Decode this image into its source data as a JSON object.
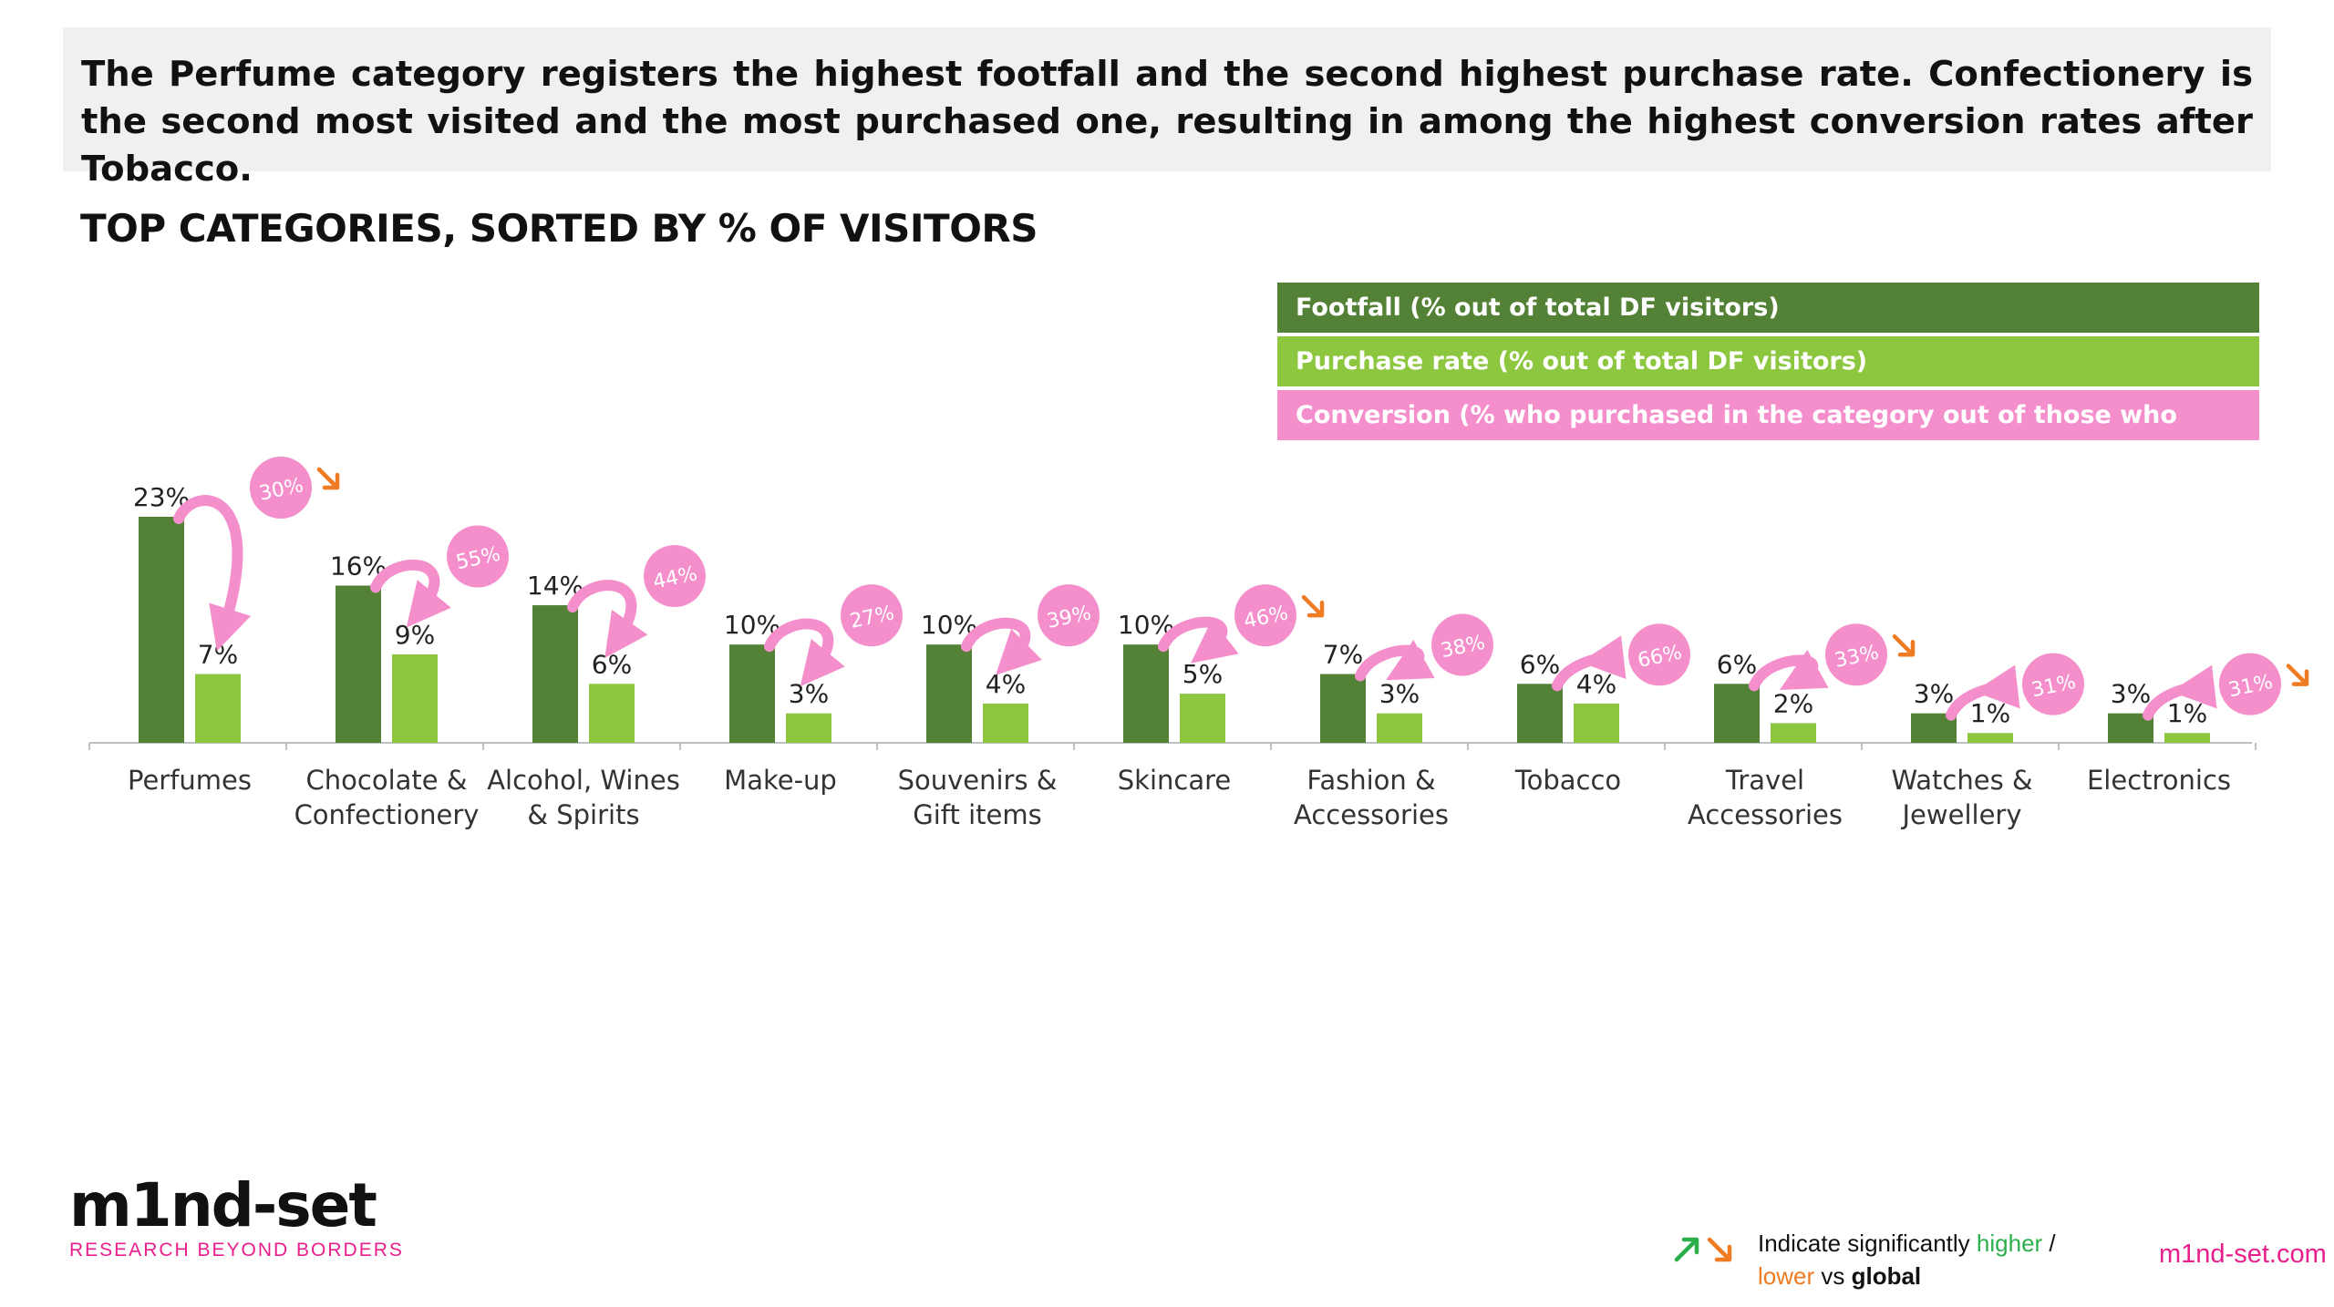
{
  "headline": "The Perfume category registers the highest footfall and the second highest purchase rate. Confectionery is the second most visited and the most purchased one, resulting in among the highest conversion rates after Tobacco.",
  "colors": {
    "footfall": "#538135",
    "purchase": "#8dc63f",
    "conversion": "#f48fcc",
    "lower_arrow": "#f07b22",
    "higher_arrow": "#2db04b",
    "brand": "#e91e8c"
  },
  "legend": {
    "footfall": "Footfall (% out of total DF visitors)",
    "purchase": "Purchase rate (% out of total DF visitors)",
    "conversion": "Conversion (% who purchased in the category out of those who visited it)"
  },
  "chart_data": {
    "type": "bar",
    "title": "TOP CATEGORIES, SORTED BY % OF VISITORS",
    "categories": [
      [
        "Perfumes"
      ],
      [
        "Chocolate &",
        "Confectionery"
      ],
      [
        "Alcohol, Wines",
        "& Spirits"
      ],
      [
        "Make-up"
      ],
      [
        "Souvenirs &",
        "Gift items"
      ],
      [
        "Skincare"
      ],
      [
        "Fashion &",
        "Accessories"
      ],
      [
        "Tobacco"
      ],
      [
        "Travel",
        "Accessories"
      ],
      [
        "Watches &",
        "Jewellery"
      ],
      [
        "Electronics"
      ]
    ],
    "series": [
      {
        "name": "Footfall (% out of total DF visitors)",
        "values": [
          23,
          16,
          14,
          10,
          10,
          10,
          7,
          6,
          6,
          3,
          3
        ]
      },
      {
        "name": "Purchase rate (% out of total DF visitors)",
        "values": [
          7,
          9,
          6,
          3,
          4,
          5,
          3,
          4,
          2,
          1,
          1
        ]
      }
    ],
    "conversion": {
      "name": "Conversion (% who purchased in the category out of those who visited it)",
      "values": [
        30,
        55,
        44,
        27,
        39,
        46,
        38,
        66,
        33,
        31,
        31
      ],
      "significance": [
        "lower",
        "",
        "",
        "",
        "",
        "lower",
        "",
        "",
        "lower",
        "",
        "lower"
      ]
    },
    "unit": "%",
    "ylim": [
      0,
      25
    ],
    "grid": false,
    "legend": "top-right"
  },
  "footer": {
    "logo_text": "m1nd-set",
    "tagline": "RESEARCH BEYOND BORDERS",
    "note_prefix": "Indicate significantly ",
    "note_higher": "higher",
    "note_sep": " /",
    "note_lower": "lower",
    "note_vs": " vs ",
    "note_global": "global",
    "site": "m1nd-set.com"
  }
}
